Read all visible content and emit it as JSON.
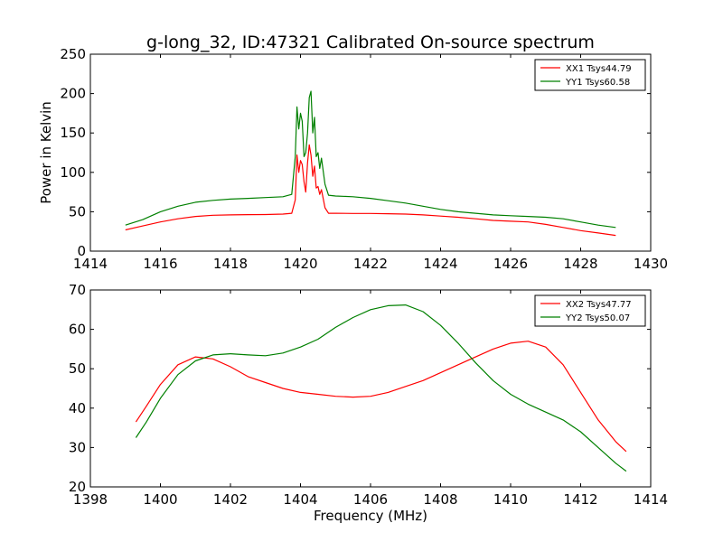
{
  "figure": {
    "title": "g-long_32, ID:47321 Calibrated On-source spectrum",
    "xlabel": "Frequency (MHz)",
    "ylabel": "Power in Kelvin"
  },
  "chart_data": [
    {
      "type": "line",
      "title": "g-long_32, ID:47321 Calibrated On-source spectrum",
      "xlabel": "",
      "ylabel": "Power in Kelvin",
      "xlim": [
        1414,
        1430
      ],
      "ylim": [
        0,
        250
      ],
      "xticks": [
        1414,
        1416,
        1418,
        1420,
        1422,
        1424,
        1426,
        1428,
        1430
      ],
      "yticks": [
        0,
        50,
        100,
        150,
        200,
        250
      ],
      "grid": false,
      "legend_position": "top-right",
      "series": [
        {
          "name": "XX1 Tsys44.79",
          "color": "#ff0000",
          "x": [
            1415.0,
            1415.5,
            1416.0,
            1416.5,
            1417.0,
            1417.5,
            1418.0,
            1418.5,
            1419.0,
            1419.5,
            1419.75,
            1419.85,
            1419.9,
            1419.95,
            1420.0,
            1420.05,
            1420.1,
            1420.15,
            1420.2,
            1420.25,
            1420.3,
            1420.35,
            1420.4,
            1420.45,
            1420.5,
            1420.55,
            1420.6,
            1420.7,
            1420.8,
            1421.0,
            1421.5,
            1422.0,
            1422.5,
            1423.0,
            1423.5,
            1424.0,
            1424.5,
            1425.0,
            1425.5,
            1426.0,
            1426.5,
            1427.0,
            1427.5,
            1428.0,
            1428.5,
            1429.0
          ],
          "y": [
            27,
            32,
            37,
            41,
            44,
            45.5,
            46,
            46.3,
            46.5,
            47,
            48,
            65,
            122,
            100,
            115,
            110,
            88,
            75,
            112,
            135,
            122,
            95,
            108,
            80,
            82,
            72,
            78,
            55,
            48,
            48,
            47.8,
            47.8,
            47.5,
            47,
            46,
            44.5,
            43,
            41,
            39,
            38,
            37,
            34,
            30,
            26,
            23,
            20
          ]
        },
        {
          "name": "YY1 Tsys60.58",
          "color": "#008000",
          "x": [
            1415.0,
            1415.5,
            1416.0,
            1416.5,
            1417.0,
            1417.5,
            1418.0,
            1418.5,
            1419.0,
            1419.5,
            1419.75,
            1419.85,
            1419.9,
            1419.95,
            1420.0,
            1420.05,
            1420.1,
            1420.15,
            1420.2,
            1420.25,
            1420.3,
            1420.35,
            1420.4,
            1420.45,
            1420.5,
            1420.55,
            1420.6,
            1420.7,
            1420.8,
            1421.0,
            1421.5,
            1422.0,
            1422.5,
            1423.0,
            1423.5,
            1424.0,
            1424.5,
            1425.0,
            1425.5,
            1426.0,
            1426.5,
            1427.0,
            1427.5,
            1428.0,
            1428.5,
            1429.0
          ],
          "y": [
            33,
            40,
            50,
            57,
            62,
            64.5,
            66,
            67,
            68,
            69,
            72,
            120,
            183,
            155,
            175,
            165,
            120,
            125,
            150,
            195,
            203,
            150,
            170,
            120,
            125,
            105,
            118,
            85,
            71,
            70,
            69,
            67,
            64,
            61,
            57,
            53,
            50,
            48,
            46,
            45,
            44,
            43,
            41,
            37,
            33,
            30
          ]
        }
      ]
    },
    {
      "type": "line",
      "title": "",
      "xlabel": "Frequency (MHz)",
      "ylabel": "",
      "xlim": [
        1398,
        1414
      ],
      "ylim": [
        20,
        70
      ],
      "xticks": [
        1398,
        1400,
        1402,
        1404,
        1406,
        1408,
        1410,
        1412,
        1414
      ],
      "yticks": [
        20,
        30,
        40,
        50,
        60,
        70
      ],
      "grid": false,
      "legend_position": "top-right",
      "series": [
        {
          "name": "XX2 Tsys47.77",
          "color": "#ff0000",
          "x": [
            1399.3,
            1399.6,
            1400.0,
            1400.5,
            1401.0,
            1401.5,
            1402.0,
            1402.5,
            1403.0,
            1403.5,
            1404.0,
            1404.5,
            1405.0,
            1405.5,
            1406.0,
            1406.5,
            1407.0,
            1407.5,
            1408.0,
            1408.5,
            1409.0,
            1409.5,
            1410.0,
            1410.5,
            1411.0,
            1411.5,
            1412.0,
            1412.5,
            1413.0,
            1413.3
          ],
          "y": [
            36.5,
            40.5,
            46,
            51,
            53,
            52.5,
            50.5,
            48,
            46.5,
            45,
            44,
            43.5,
            43,
            42.8,
            43,
            44,
            45.5,
            47,
            49,
            51,
            53,
            55,
            56.5,
            57,
            55.5,
            51,
            44,
            37,
            31.5,
            29
          ]
        },
        {
          "name": "YY2 Tsys50.07",
          "color": "#008000",
          "x": [
            1399.3,
            1399.6,
            1400.0,
            1400.5,
            1401.0,
            1401.5,
            1402.0,
            1402.5,
            1403.0,
            1403.5,
            1404.0,
            1404.5,
            1405.0,
            1405.5,
            1406.0,
            1406.5,
            1407.0,
            1407.5,
            1408.0,
            1408.5,
            1409.0,
            1409.5,
            1410.0,
            1410.5,
            1411.0,
            1411.5,
            1412.0,
            1412.5,
            1413.0,
            1413.3
          ],
          "y": [
            32.5,
            36.5,
            42.5,
            48.5,
            52,
            53.5,
            53.8,
            53.5,
            53.3,
            54,
            55.5,
            57.5,
            60.5,
            63,
            65,
            66,
            66.2,
            64.5,
            61,
            56.5,
            51.5,
            47,
            43.5,
            41,
            39,
            37,
            34,
            30,
            26,
            24
          ]
        }
      ]
    }
  ]
}
